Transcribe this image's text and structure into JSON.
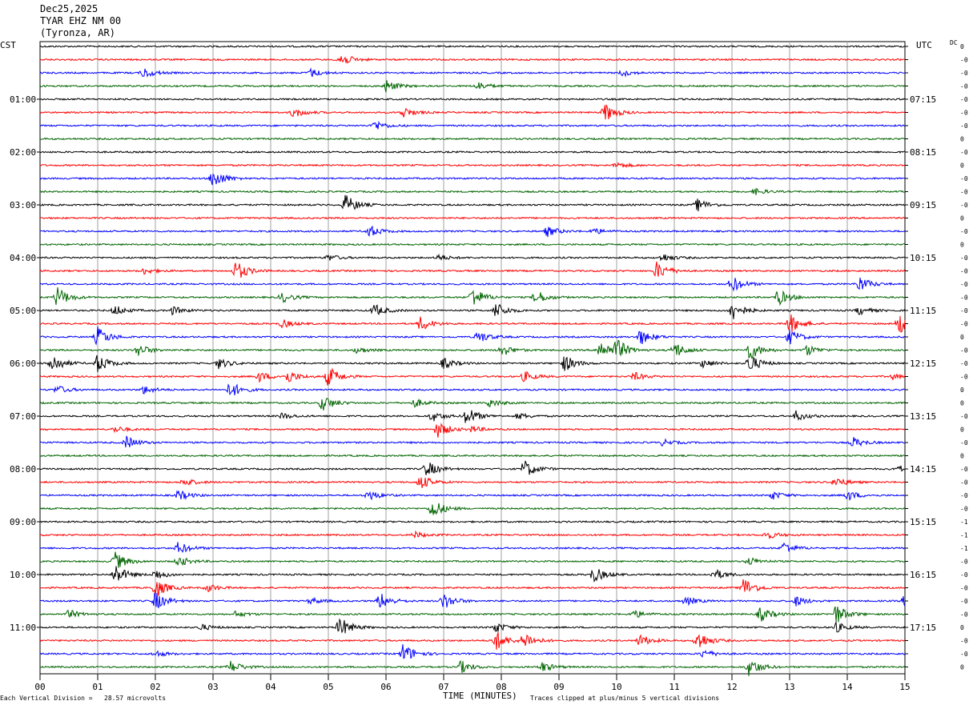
{
  "header": {
    "date": "Dec25,2025",
    "station": "TYAR EHZ NM 00",
    "location": "(Tyronza, AR)"
  },
  "left_zone": "CST",
  "right_zone": "UTC",
  "dc_label": "DC",
  "footer": {
    "scale_note": "Each Vertical Division =   28.57 microvolts",
    "xlabel": "TIME (MINUTES)",
    "clip_note": "Traces clipped at plus/minus 5 vertical divisions"
  },
  "colors": {
    "trace_cycle": [
      "#000000",
      "#ff0000",
      "#0000ff",
      "#006400"
    ],
    "grid": "#a0a0a0"
  },
  "chart_data": {
    "type": "line",
    "title": "TYAR EHZ NM 00 (Tyronza, AR)",
    "xlabel": "TIME (MINUTES)",
    "xlim": [
      0,
      15
    ],
    "x_ticks": [
      "00",
      "01",
      "02",
      "03",
      "04",
      "05",
      "06",
      "07",
      "08",
      "09",
      "10",
      "11",
      "12",
      "13",
      "14",
      "15"
    ],
    "trace_count": 48,
    "minutes_per_trace": 15,
    "left_time_labels": [
      "01:00",
      "02:00",
      "03:00",
      "04:00",
      "05:00",
      "06:00",
      "07:00",
      "08:00",
      "09:00",
      "10:00",
      "11:00"
    ],
    "right_time_labels": [
      "07:15",
      "08:15",
      "09:15",
      "10:15",
      "11:15",
      "12:15",
      "13:15",
      "14:15",
      "15:15",
      "16:15",
      "17:15"
    ],
    "dc_offsets": [
      "0",
      "-0",
      "-0",
      "-0",
      "-0",
      "-0",
      "-0",
      "0",
      "-0",
      "0",
      "-0",
      "-0",
      "-0",
      "0",
      "-0",
      "0",
      "-0",
      "-0",
      "-0",
      "-0",
      "-0",
      "-0",
      "0",
      "-0",
      "-0",
      "-0",
      "0",
      "0",
      "-0",
      "0",
      "-0",
      "0",
      "-0",
      "-0",
      "-0",
      "-0",
      "-1",
      "-1",
      "-1",
      "-0",
      "-0",
      "-0",
      "-0",
      "-0",
      "0",
      "-0",
      "-0",
      "0"
    ],
    "events": [
      [
        1,
        5.2,
        0.7
      ],
      [
        2,
        1.8,
        0.5
      ],
      [
        2,
        4.7,
        0.4
      ],
      [
        2,
        10.1,
        0.3
      ],
      [
        3,
        6.0,
        0.6
      ],
      [
        3,
        7.6,
        0.4
      ],
      [
        5,
        4.4,
        0.5
      ],
      [
        5,
        6.3,
        0.5
      ],
      [
        5,
        9.8,
        0.9
      ],
      [
        6,
        5.8,
        0.5
      ],
      [
        9,
        10.0,
        0.3
      ],
      [
        10,
        3.0,
        1.0
      ],
      [
        11,
        12.4,
        0.3
      ],
      [
        12,
        5.3,
        1.0
      ],
      [
        12,
        11.4,
        0.6
      ],
      [
        14,
        5.7,
        0.6
      ],
      [
        14,
        8.8,
        0.5
      ],
      [
        14,
        9.6,
        0.3
      ],
      [
        16,
        5.0,
        0.3
      ],
      [
        16,
        6.9,
        0.3
      ],
      [
        16,
        10.8,
        0.4
      ],
      [
        17,
        3.4,
        1.0
      ],
      [
        17,
        10.7,
        0.9
      ],
      [
        17,
        1.8,
        0.3
      ],
      [
        18,
        12.0,
        0.8
      ],
      [
        18,
        14.2,
        0.8
      ],
      [
        19,
        0.3,
        1.0
      ],
      [
        19,
        4.2,
        0.5
      ],
      [
        19,
        7.5,
        1.0
      ],
      [
        19,
        8.6,
        0.7
      ],
      [
        19,
        12.8,
        0.8
      ],
      [
        20,
        1.3,
        0.5
      ],
      [
        20,
        2.3,
        0.4
      ],
      [
        20,
        5.8,
        0.6
      ],
      [
        20,
        7.9,
        0.8
      ],
      [
        20,
        12.0,
        1.0
      ],
      [
        20,
        14.2,
        0.4
      ],
      [
        21,
        4.2,
        0.4
      ],
      [
        21,
        6.6,
        0.7
      ],
      [
        21,
        13.0,
        1.0
      ],
      [
        21,
        14.9,
        1.0
      ],
      [
        22,
        1.0,
        1.0
      ],
      [
        22,
        7.6,
        0.6
      ],
      [
        22,
        10.4,
        0.8
      ],
      [
        22,
        13.0,
        0.7
      ],
      [
        23,
        1.7,
        0.6
      ],
      [
        23,
        5.5,
        0.3
      ],
      [
        23,
        8.0,
        0.6
      ],
      [
        23,
        9.7,
        1.0
      ],
      [
        23,
        10.0,
        1.0
      ],
      [
        23,
        11.0,
        0.8
      ],
      [
        23,
        12.3,
        1.0
      ],
      [
        23,
        13.3,
        0.5
      ],
      [
        24,
        0.2,
        1.0
      ],
      [
        24,
        1.0,
        0.9
      ],
      [
        24,
        3.1,
        0.5
      ],
      [
        24,
        7.0,
        0.5
      ],
      [
        24,
        9.1,
        0.8
      ],
      [
        24,
        11.5,
        0.4
      ],
      [
        24,
        12.3,
        0.9
      ],
      [
        25,
        3.8,
        0.5
      ],
      [
        25,
        4.3,
        0.6
      ],
      [
        25,
        5.0,
        1.0
      ],
      [
        25,
        8.4,
        0.5
      ],
      [
        25,
        10.3,
        0.4
      ],
      [
        25,
        14.8,
        0.3
      ],
      [
        26,
        0.3,
        0.4
      ],
      [
        26,
        1.8,
        0.4
      ],
      [
        26,
        3.3,
        0.8
      ],
      [
        27,
        4.9,
        0.8
      ],
      [
        27,
        6.5,
        0.4
      ],
      [
        27,
        7.8,
        0.4
      ],
      [
        28,
        4.2,
        0.3
      ],
      [
        28,
        6.8,
        0.5
      ],
      [
        28,
        7.4,
        0.9
      ],
      [
        28,
        8.3,
        0.3
      ],
      [
        28,
        13.1,
        0.5
      ],
      [
        29,
        1.3,
        0.3
      ],
      [
        29,
        6.9,
        0.8
      ],
      [
        29,
        7.5,
        0.3
      ],
      [
        30,
        1.5,
        0.6
      ],
      [
        30,
        10.8,
        0.3
      ],
      [
        30,
        14.1,
        0.5
      ],
      [
        32,
        6.7,
        0.8
      ],
      [
        32,
        8.4,
        0.9
      ],
      [
        32,
        14.9,
        0.3
      ],
      [
        33,
        2.5,
        0.4
      ],
      [
        33,
        6.6,
        0.7
      ],
      [
        33,
        13.8,
        0.5
      ],
      [
        34,
        2.4,
        0.5
      ],
      [
        34,
        5.7,
        0.5
      ],
      [
        34,
        12.7,
        0.4
      ],
      [
        34,
        14.0,
        0.5
      ],
      [
        35,
        6.8,
        1.0
      ],
      [
        37,
        6.5,
        0.3
      ],
      [
        37,
        12.6,
        0.4
      ],
      [
        38,
        2.4,
        0.6
      ],
      [
        38,
        12.9,
        0.6
      ],
      [
        39,
        1.3,
        0.9
      ],
      [
        39,
        2.4,
        0.5
      ],
      [
        39,
        12.3,
        0.4
      ],
      [
        40,
        1.3,
        1.0
      ],
      [
        40,
        2.0,
        0.5
      ],
      [
        40,
        9.6,
        0.8
      ],
      [
        40,
        11.7,
        0.5
      ],
      [
        41,
        2.0,
        1.0
      ],
      [
        41,
        2.9,
        0.4
      ],
      [
        41,
        12.2,
        1.0
      ],
      [
        42,
        2.0,
        0.9
      ],
      [
        42,
        4.7,
        0.3
      ],
      [
        42,
        5.9,
        0.8
      ],
      [
        42,
        7.0,
        0.8
      ],
      [
        42,
        11.2,
        0.4
      ],
      [
        42,
        13.1,
        0.5
      ],
      [
        42,
        15.0,
        0.6
      ],
      [
        43,
        0.5,
        0.4
      ],
      [
        43,
        3.4,
        0.3
      ],
      [
        43,
        10.3,
        0.4
      ],
      [
        43,
        12.5,
        0.7
      ],
      [
        43,
        13.8,
        1.0
      ],
      [
        44,
        2.8,
        0.3
      ],
      [
        44,
        5.2,
        1.0
      ],
      [
        44,
        7.9,
        0.5
      ],
      [
        44,
        13.8,
        0.5
      ],
      [
        45,
        7.9,
        1.0
      ],
      [
        45,
        8.4,
        0.8
      ],
      [
        45,
        10.4,
        0.6
      ],
      [
        45,
        11.4,
        1.0
      ],
      [
        46,
        2.0,
        0.3
      ],
      [
        46,
        6.3,
        1.0
      ],
      [
        46,
        11.5,
        0.4
      ],
      [
        47,
        3.3,
        0.6
      ],
      [
        47,
        7.3,
        0.6
      ],
      [
        47,
        8.7,
        0.5
      ],
      [
        47,
        12.3,
        0.9
      ]
    ]
  }
}
